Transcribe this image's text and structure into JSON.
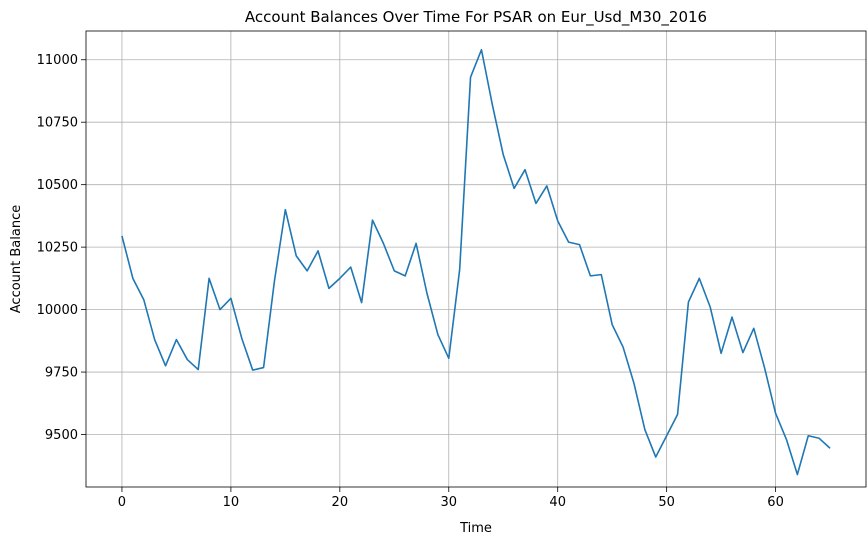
{
  "chart_data": {
    "type": "line",
    "title": "Account Balances Over Time For PSAR on Eur_Usd_M30_2016",
    "xlabel": "Time",
    "ylabel": "Account Balance",
    "xlim": [
      -3.3,
      68.3
    ],
    "ylim": [
      9290,
      11115
    ],
    "xticks": [
      0,
      10,
      20,
      30,
      40,
      50,
      60
    ],
    "yticks": [
      9500,
      9750,
      10000,
      10250,
      10500,
      10750,
      11000
    ],
    "grid": true,
    "line_color": "#1f77b4",
    "series": [
      {
        "name": "Account Balance",
        "x": [
          0,
          1,
          2,
          3,
          4,
          5,
          6,
          7,
          8,
          9,
          10,
          11,
          12,
          13,
          14,
          15,
          16,
          17,
          18,
          19,
          20,
          21,
          22,
          23,
          24,
          25,
          26,
          27,
          28,
          29,
          30,
          31,
          32,
          33,
          34,
          35,
          36,
          37,
          38,
          39,
          40,
          41,
          42,
          43,
          44,
          45,
          46,
          47,
          48,
          49,
          50,
          51,
          52,
          53,
          54,
          55,
          56,
          57,
          58,
          59,
          60,
          61,
          62,
          63,
          64,
          65
        ],
        "values": [
          10295,
          10125,
          10040,
          9880,
          9775,
          9880,
          9800,
          9760,
          10125,
          10000,
          10045,
          9885,
          9758,
          9768,
          10115,
          10400,
          10215,
          10155,
          10235,
          10085,
          10125,
          10170,
          10028,
          10358,
          10265,
          10155,
          10135,
          10265,
          10065,
          9900,
          9805,
          10160,
          10930,
          11040,
          10820,
          10620,
          10485,
          10560,
          10425,
          10495,
          10355,
          10270,
          10260,
          10135,
          10140,
          9940,
          9850,
          9705,
          9520,
          9410,
          9495,
          9580,
          10030,
          10125,
          10010,
          9825,
          9970,
          9828,
          9925,
          9765,
          9585,
          9480,
          9340,
          9495,
          9485,
          9445
        ]
      }
    ]
  }
}
